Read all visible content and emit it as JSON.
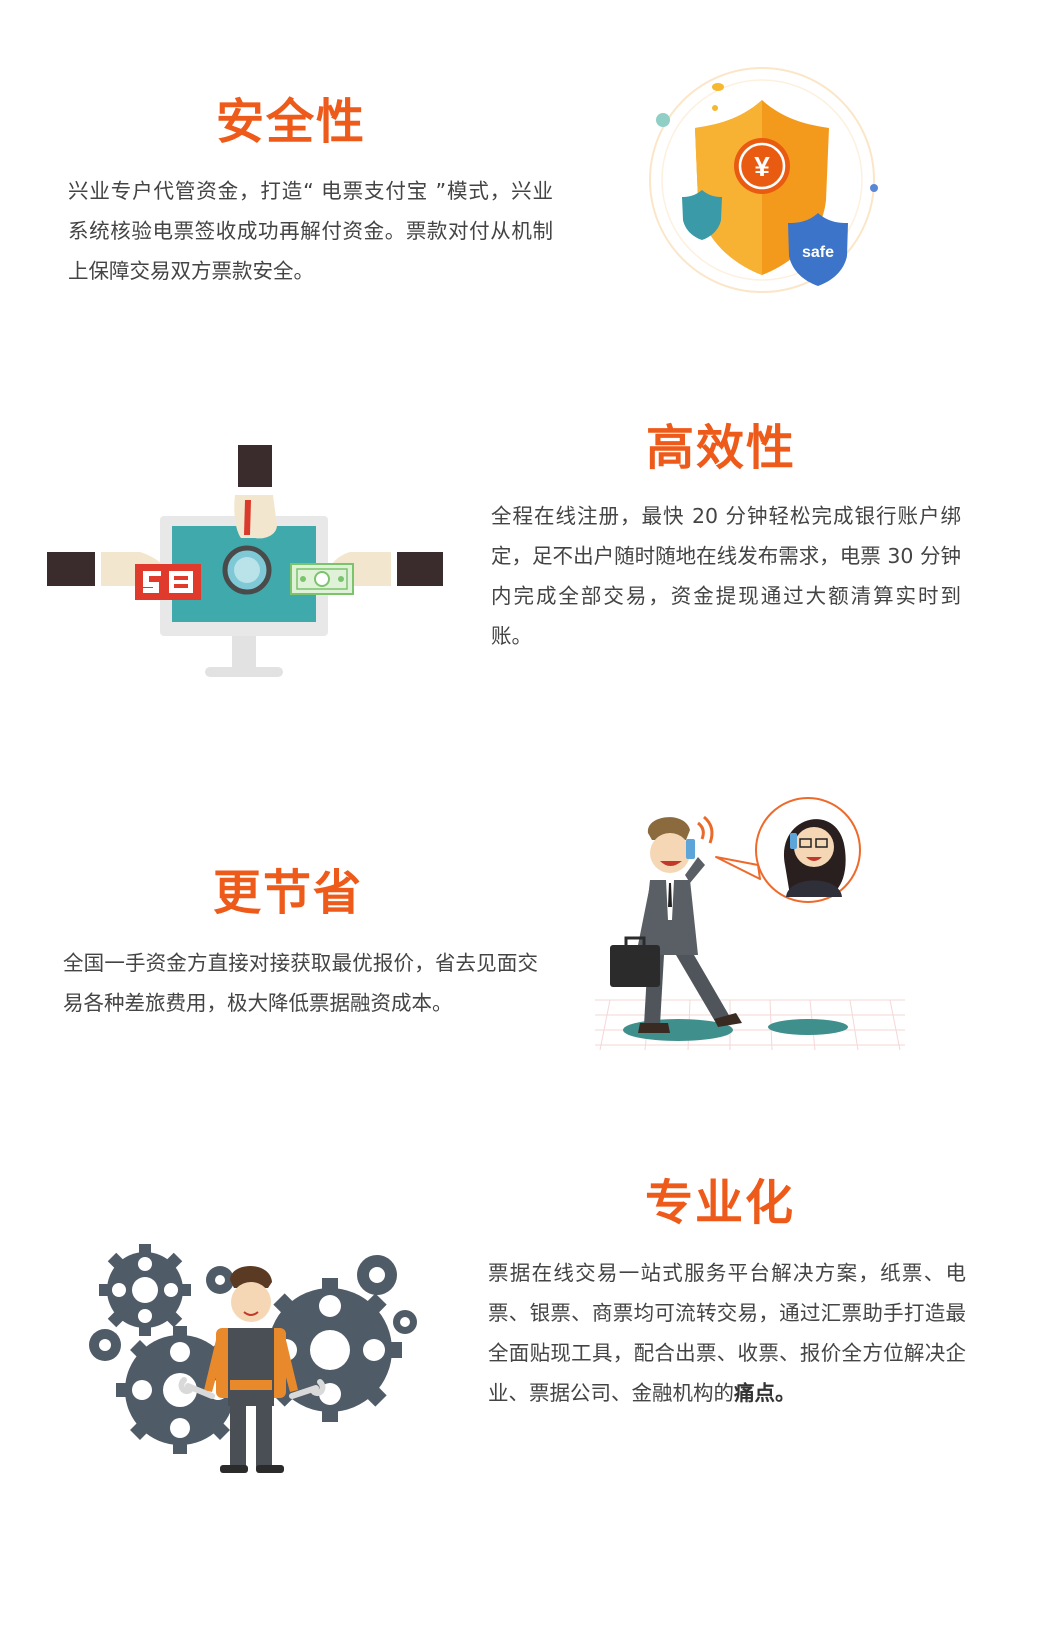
{
  "sections": [
    {
      "title": "安全性",
      "text": "兴业专户代管资金，打造“ 电票支付宝 ”模式，兴业系统核验电票签收成功再解付资金。票款对付从机制上保障交易双方票款安全。",
      "illustration": "security-shield"
    },
    {
      "title": "高效性",
      "text": "全程在线注册，最快 20 分钟轻松完成银行账户绑定，足不出户随时随地在线发布需求，电票 30 分钟内完成全部交易，资金提现通过大额清算实时到账。",
      "illustration": "monitor-transaction"
    },
    {
      "title": "更节省",
      "text": "全国一手资金方直接对接获取最优报价，省去见面交易各种差旅费用，极大降低票据融资成本。",
      "illustration": "businessman-phone-call"
    },
    {
      "title": "专业化",
      "text_main": "票据在线交易一站式服务平台解决方案，纸票、电票、银票、商票均可流转交易，通过汇票助手打造最全面贴现工具，配合出票、收票、报价全方位解决企业、票据公司、金融机构的",
      "text_bold": "痛点。",
      "illustration": "worker-gears"
    }
  ],
  "shield": {
    "symbol": "¥",
    "badge": "safe"
  },
  "colors": {
    "accent": "#ee5a1a",
    "text": "#444444",
    "shield_orange": "#f39a1d",
    "shield_blue": "#3b74c9",
    "teal": "#3a9aa8",
    "gear": "#4f5b66"
  }
}
